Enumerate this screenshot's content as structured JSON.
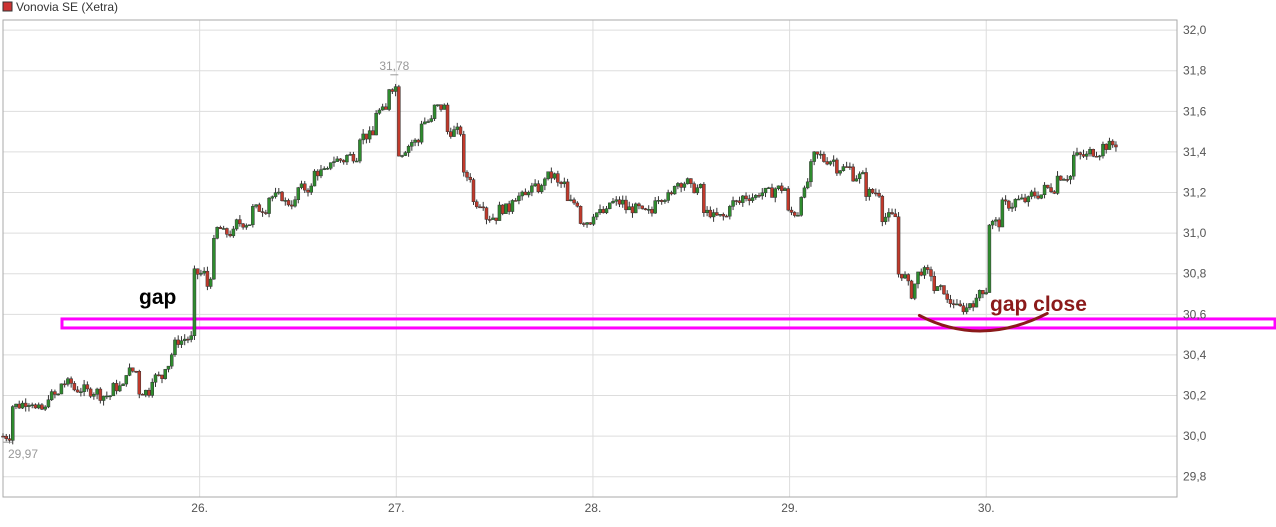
{
  "chart_data": {
    "type": "candlestick",
    "title": "",
    "legend": {
      "label": "Vonovia SE (Xetra)",
      "color": "#cc3333",
      "placement": "top-left"
    },
    "y_axis": {
      "position": "right",
      "ylim": [
        29.7,
        32.05
      ],
      "ticks": [
        "32,0",
        "31,8",
        "31,6",
        "31,4",
        "31,2",
        "31,0",
        "30,8",
        "30,6",
        "30,4",
        "30,2",
        "30,0",
        "29,8"
      ],
      "tick_values": [
        32.0,
        31.8,
        31.6,
        31.4,
        31.2,
        31.0,
        30.8,
        30.6,
        30.4,
        30.2,
        30.0,
        29.8
      ]
    },
    "x_axis": {
      "ticks": [
        "26.",
        "27.",
        "28.",
        "29.",
        "30."
      ],
      "tick_values": [
        26,
        27,
        28,
        29,
        30
      ],
      "xlim": [
        25.0,
        30.97
      ]
    },
    "grid": true,
    "colors": {
      "up": "#2e8b2e",
      "down": "#c0392b",
      "wick": "#333333"
    },
    "min_label": {
      "text": "29,97",
      "value": 29.97
    },
    "max_label": {
      "text": "31,78",
      "value": 31.78
    },
    "price_path": [
      [
        25.0,
        30.0
      ],
      [
        25.08,
        30.15
      ],
      [
        25.12,
        30.17
      ],
      [
        25.18,
        30.13
      ],
      [
        25.25,
        30.2
      ],
      [
        25.32,
        30.26
      ],
      [
        25.38,
        30.23
      ],
      [
        25.45,
        30.22
      ],
      [
        25.52,
        30.2
      ],
      [
        25.58,
        30.24
      ],
      [
        25.65,
        30.32
      ],
      [
        25.72,
        30.22
      ],
      [
        25.78,
        30.29
      ],
      [
        25.84,
        30.35
      ],
      [
        25.88,
        30.47
      ],
      [
        25.94,
        30.48
      ],
      [
        26.0,
        30.8
      ],
      [
        26.05,
        30.74
      ],
      [
        26.08,
        31.02
      ],
      [
        26.15,
        31.0
      ],
      [
        26.22,
        31.05
      ],
      [
        26.3,
        31.12
      ],
      [
        26.38,
        31.18
      ],
      [
        26.46,
        31.15
      ],
      [
        26.54,
        31.22
      ],
      [
        26.62,
        31.3
      ],
      [
        26.7,
        31.36
      ],
      [
        26.78,
        31.38
      ],
      [
        26.85,
        31.48
      ],
      [
        26.92,
        31.6
      ],
      [
        26.98,
        31.72
      ],
      [
        27.03,
        31.4
      ],
      [
        27.08,
        31.45
      ],
      [
        27.15,
        31.55
      ],
      [
        27.22,
        31.62
      ],
      [
        27.3,
        31.5
      ],
      [
        27.36,
        31.28
      ],
      [
        27.42,
        31.15
      ],
      [
        27.48,
        31.08
      ],
      [
        27.55,
        31.12
      ],
      [
        27.62,
        31.18
      ],
      [
        27.7,
        31.22
      ],
      [
        27.78,
        31.28
      ],
      [
        27.84,
        31.24
      ],
      [
        27.9,
        31.15
      ],
      [
        27.96,
        31.06
      ],
      [
        28.04,
        31.1
      ],
      [
        28.12,
        31.15
      ],
      [
        28.2,
        31.12
      ],
      [
        28.28,
        31.1
      ],
      [
        28.35,
        31.18
      ],
      [
        28.45,
        31.25
      ],
      [
        28.52,
        31.22
      ],
      [
        28.58,
        31.1
      ],
      [
        28.64,
        31.08
      ],
      [
        28.72,
        31.15
      ],
      [
        28.8,
        31.18
      ],
      [
        28.88,
        31.2
      ],
      [
        28.95,
        31.22
      ],
      [
        29.02,
        31.1
      ],
      [
        29.08,
        31.2
      ],
      [
        29.12,
        31.38
      ],
      [
        29.2,
        31.36
      ],
      [
        29.28,
        31.32
      ],
      [
        29.35,
        31.28
      ],
      [
        29.42,
        31.2
      ],
      [
        29.5,
        31.08
      ],
      [
        29.58,
        30.8
      ],
      [
        29.62,
        30.7
      ],
      [
        29.66,
        30.82
      ],
      [
        29.7,
        30.8
      ],
      [
        29.76,
        30.72
      ],
      [
        29.82,
        30.66
      ],
      [
        29.88,
        30.63
      ],
      [
        29.93,
        30.66
      ],
      [
        29.99,
        30.72
      ],
      [
        30.04,
        31.05
      ],
      [
        30.1,
        31.14
      ],
      [
        30.18,
        31.16
      ],
      [
        30.25,
        31.19
      ],
      [
        30.32,
        31.22
      ],
      [
        30.4,
        31.28
      ],
      [
        30.48,
        31.38
      ],
      [
        30.55,
        31.4
      ],
      [
        30.62,
        31.43
      ],
      [
        30.66,
        31.44
      ]
    ]
  },
  "annotations": {
    "gap_label": "gap",
    "gap_close_label": "gap close",
    "gap_band_value": 30.555,
    "gap_band_start_x": 25.3,
    "gap_color": "#ff00ff",
    "gap_close_color": "#8b1a1a",
    "arc_x": [
      29.66,
      29.97,
      30.31
    ]
  }
}
